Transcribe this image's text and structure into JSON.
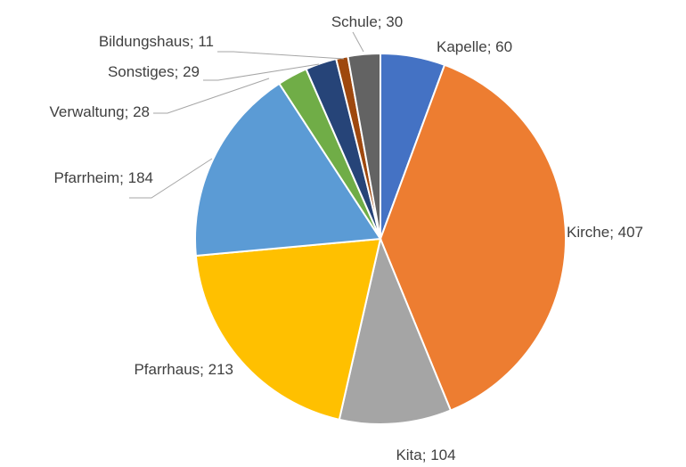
{
  "chart_data": {
    "type": "pie",
    "categories": [
      "Kapelle",
      "Kirche",
      "Kita",
      "Pfarrhaus",
      "Pfarrheim",
      "Verwaltung",
      "Sonstiges",
      "Bildungshaus",
      "Schule"
    ],
    "values": [
      60,
      407,
      104,
      213,
      184,
      28,
      29,
      11,
      30
    ],
    "colors": [
      "#4472c4",
      "#ed7d31",
      "#a5a5a5",
      "#ffc000",
      "#5b9bd5",
      "#70ad47",
      "#264478",
      "#9e480e",
      "#636363"
    ]
  }
}
